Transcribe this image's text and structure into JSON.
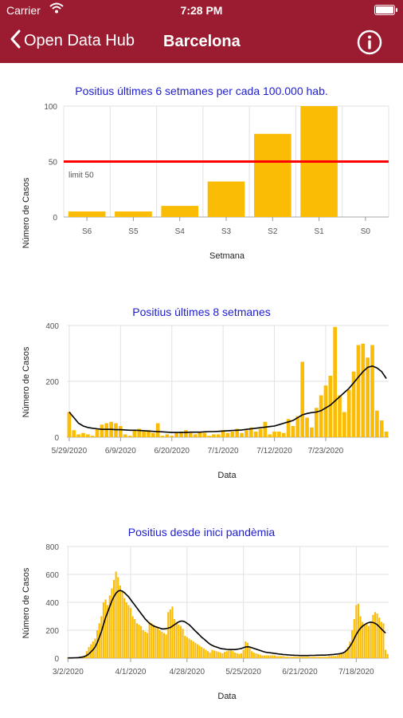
{
  "status": {
    "carrier": "Carrier",
    "time": "7:28 PM"
  },
  "nav": {
    "back_label": "Open Data Hub",
    "title": "Barcelona"
  },
  "colors": {
    "header": "#9b1b30",
    "bar": "#fbbc05",
    "limit": "#ff0000",
    "avg": "#000000",
    "title": "#2020d0"
  },
  "chart_data": [
    {
      "type": "bar",
      "title": "Positius últimes 6 setmanes per cada 100.000 hab.",
      "xlabel": "Setmana",
      "ylabel": "Número de Casos",
      "categories": [
        "S6",
        "S5",
        "S4",
        "S3",
        "S2",
        "S1",
        "S0"
      ],
      "values": [
        5,
        5,
        10,
        32,
        75,
        100,
        0
      ],
      "ylim": [
        0,
        100
      ],
      "yticks": [
        "0",
        "50",
        "100"
      ],
      "limit_value": 50,
      "limit_label": "limit 50"
    },
    {
      "type": "bar",
      "title": "Positius últimes 8 setmanes",
      "xlabel": "Data",
      "ylabel": "Número de Casos",
      "x_start": "5/29/2020",
      "xticks": [
        "5/29/2020",
        "6/9/2020",
        "6/20/2020",
        "7/1/2020",
        "7/12/2020",
        "7/23/2020"
      ],
      "yticks": [
        "0",
        "200",
        "400"
      ],
      "ylim": [
        0,
        400
      ],
      "values": [
        90,
        25,
        10,
        15,
        10,
        5,
        30,
        45,
        50,
        55,
        50,
        40,
        10,
        5,
        25,
        30,
        20,
        25,
        15,
        50,
        5,
        10,
        5,
        15,
        20,
        25,
        15,
        10,
        20,
        15,
        5,
        10,
        10,
        25,
        15,
        20,
        30,
        15,
        25,
        35,
        20,
        30,
        55,
        10,
        20,
        20,
        15,
        65,
        40,
        75,
        270,
        70,
        35,
        105,
        150,
        185,
        220,
        395,
        150,
        90,
        170,
        235,
        330,
        335,
        285,
        330,
        95,
        60,
        20
      ],
      "series": [
        {
          "name": "",
          "type": "line",
          "values": [
            90,
            70,
            50,
            40,
            35,
            32,
            30,
            28,
            28,
            28,
            27,
            27,
            26,
            25,
            25,
            24,
            23,
            22,
            21,
            20,
            19,
            18,
            17,
            17,
            17,
            17,
            18,
            18,
            18,
            19,
            20,
            20,
            21,
            22,
            23,
            24,
            25,
            26,
            28,
            30,
            32,
            34,
            36,
            38,
            40,
            45,
            50,
            55,
            60,
            70,
            80,
            85,
            88,
            90,
            95,
            105,
            115,
            130,
            145,
            160,
            175,
            195,
            215,
            235,
            250,
            255,
            248,
            235,
            210
          ]
        }
      ]
    },
    {
      "type": "bar",
      "title": "Positius desde inici pandèmia",
      "xlabel": "Data",
      "ylabel": "Número de Casos",
      "x_start": "3/2/2020",
      "xticks": [
        "3/2/2020",
        "4/1/2020",
        "4/28/2020",
        "5/25/2020",
        "6/21/2020",
        "7/18/2020"
      ],
      "yticks": [
        "0",
        "200",
        "400",
        "600",
        "800"
      ],
      "ylim": [
        0,
        800
      ],
      "values": [
        5,
        5,
        5,
        5,
        5,
        5,
        10,
        15,
        20,
        50,
        80,
        100,
        120,
        140,
        200,
        250,
        300,
        400,
        420,
        380,
        450,
        500,
        560,
        620,
        580,
        520,
        480,
        430,
        400,
        380,
        360,
        300,
        280,
        250,
        240,
        230,
        200,
        190,
        180,
        260,
        250,
        240,
        230,
        220,
        200,
        190,
        180,
        170,
        330,
        350,
        370,
        280,
        260,
        240,
        230,
        210,
        160,
        150,
        140,
        130,
        120,
        110,
        100,
        90,
        80,
        70,
        60,
        50,
        40,
        60,
        55,
        50,
        45,
        40,
        35,
        45,
        50,
        55,
        60,
        50,
        40,
        35,
        30,
        35,
        60,
        120,
        110,
        80,
        50,
        40,
        35,
        30,
        25,
        20,
        20,
        20,
        20,
        20,
        20,
        20,
        15,
        15,
        15,
        15,
        10,
        10,
        10,
        10,
        10,
        10,
        10,
        10,
        10,
        10,
        10,
        10,
        10,
        10,
        10,
        10,
        10,
        10,
        10,
        10,
        10,
        15,
        15,
        15,
        15,
        20,
        30,
        30,
        40,
        60,
        80,
        120,
        200,
        280,
        380,
        390,
        300,
        260,
        240,
        250,
        230,
        260,
        310,
        330,
        320,
        290,
        260,
        250,
        60,
        30
      ],
      "series": [
        {
          "name": "",
          "type": "line",
          "values": [
            2,
            2,
            2,
            3,
            3,
            4,
            6,
            8,
            12,
            20,
            30,
            45,
            60,
            80,
            110,
            150,
            190,
            240,
            290,
            330,
            370,
            410,
            440,
            465,
            480,
            485,
            480,
            470,
            455,
            440,
            420,
            400,
            380,
            360,
            340,
            320,
            300,
            280,
            265,
            250,
            240,
            230,
            225,
            220,
            215,
            210,
            210,
            212,
            215,
            220,
            230,
            240,
            250,
            260,
            265,
            265,
            260,
            250,
            240,
            225,
            210,
            195,
            180,
            165,
            150,
            138,
            125,
            112,
            100,
            92,
            85,
            80,
            75,
            70,
            67,
            65,
            63,
            62,
            62,
            62,
            62,
            64,
            66,
            70,
            75,
            80,
            82,
            80,
            75,
            70,
            65,
            60,
            55,
            50,
            45,
            42,
            40,
            38,
            36,
            34,
            32,
            30,
            28,
            26,
            25,
            24,
            23,
            22,
            21,
            20,
            20,
            19,
            19,
            19,
            19,
            19,
            20,
            20,
            20,
            21,
            21,
            22,
            22,
            22,
            23,
            24,
            25,
            26,
            28,
            30,
            32,
            35,
            40,
            50,
            65,
            85,
            110,
            140,
            170,
            195,
            215,
            230,
            240,
            250,
            255,
            258,
            255,
            250,
            240,
            225,
            210,
            195,
            180
          ]
        }
      ]
    }
  ]
}
